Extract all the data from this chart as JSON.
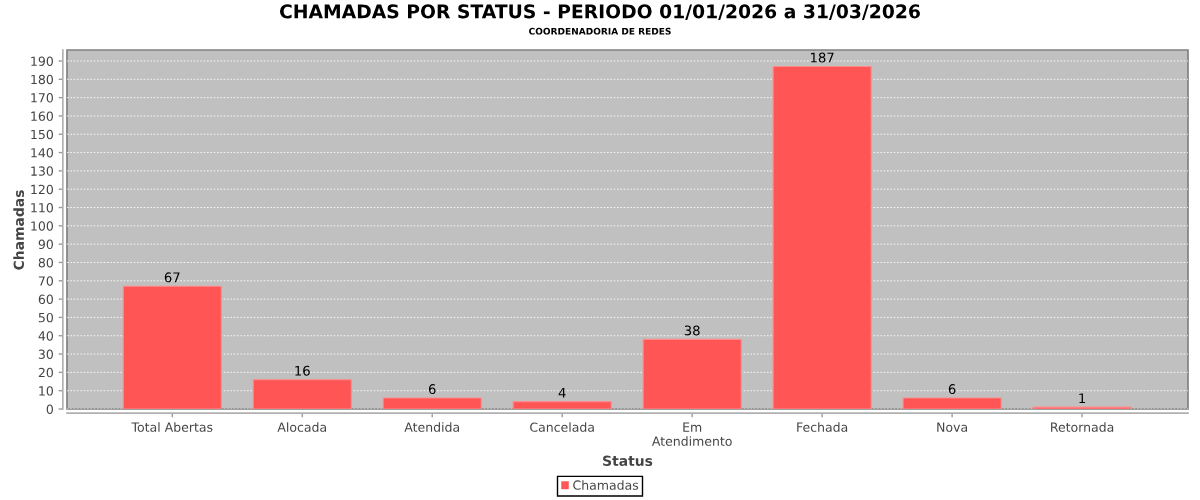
{
  "chart_data": {
    "type": "bar",
    "title": "CHAMADAS POR STATUS - PERIODO 01/01/2026 a 31/03/2026",
    "subtitle": "COORDENADORIA DE REDES",
    "xlabel": "Status",
    "ylabel": "Chamadas",
    "categories": [
      "Total Abertas",
      "Alocada",
      "Atendida",
      "Cancelada",
      "Em Atendimento",
      "Fechada",
      "Nova",
      "Retornada"
    ],
    "series": [
      {
        "name": "Chamadas",
        "color": "#ff5555",
        "values": [
          67,
          16,
          6,
          4,
          38,
          187,
          6,
          1
        ]
      }
    ],
    "ylim": [
      0,
      196
    ],
    "yticks": [
      0,
      10,
      20,
      30,
      40,
      50,
      60,
      70,
      80,
      90,
      100,
      110,
      120,
      130,
      140,
      150,
      160,
      170,
      180,
      190
    ],
    "grid": "y",
    "legend": "bottom",
    "data_labels": true
  }
}
